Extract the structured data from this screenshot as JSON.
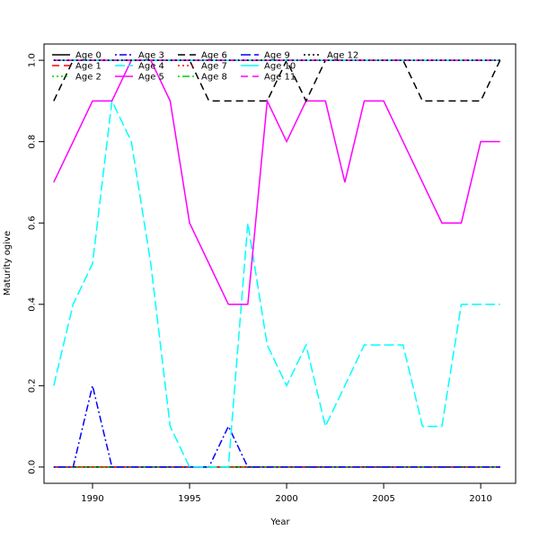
{
  "chart_data": {
    "type": "line",
    "xlabel": "Year",
    "ylabel": "Maturity ogive",
    "xlim": [
      1987.5,
      2011.8
    ],
    "ylim": [
      -0.04,
      1.04
    ],
    "x_ticks": [
      1990,
      1995,
      2000,
      2005,
      2010
    ],
    "y_ticks": [
      0.0,
      0.2,
      0.4,
      0.6,
      0.8,
      1.0
    ],
    "x_tick_labels": [
      "1990",
      "1995",
      "2000",
      "2005",
      "2010"
    ],
    "y_tick_labels": [
      "0.0",
      "0.2",
      "0.4",
      "0.6",
      "0.8",
      "1.0"
    ],
    "grid": false,
    "legend_position": "top-left",
    "x": [
      1988,
      1989,
      1990,
      1991,
      1992,
      1993,
      1994,
      1995,
      1996,
      1997,
      1998,
      1999,
      2000,
      2001,
      2002,
      2003,
      2004,
      2005,
      2006,
      2007,
      2008,
      2009,
      2010,
      2011
    ],
    "series": [
      {
        "name": "Age 0",
        "color": "#000000",
        "dash": "solid",
        "values": [
          0,
          0,
          0,
          0,
          0,
          0,
          0,
          0,
          0,
          0,
          0,
          0,
          0,
          0,
          0,
          0,
          0,
          0,
          0,
          0,
          0,
          0,
          0,
          0
        ]
      },
      {
        "name": "Age 1",
        "color": "#ff0000",
        "dash": "dashed",
        "values": [
          0,
          0,
          0,
          0,
          0,
          0,
          0,
          0,
          0,
          0,
          0,
          0,
          0,
          0,
          0,
          0,
          0,
          0,
          0,
          0,
          0,
          0,
          0,
          0
        ]
      },
      {
        "name": "Age 2",
        "color": "#00cd00",
        "dash": "dotted",
        "values": [
          0,
          0,
          0,
          0,
          0,
          0,
          0,
          0,
          0,
          0,
          0,
          0,
          0,
          0,
          0,
          0,
          0,
          0,
          0,
          0,
          0,
          0,
          0,
          0
        ]
      },
      {
        "name": "Age 3",
        "color": "#0000ff",
        "dash": "dotdash",
        "values": [
          0,
          0,
          0.2,
          0,
          0,
          0,
          0,
          0,
          0,
          0.1,
          0,
          0,
          0,
          0,
          0,
          0,
          0,
          0,
          0,
          0,
          0,
          0,
          0,
          0
        ]
      },
      {
        "name": "Age 4",
        "color": "#00ffff",
        "dash": "longdash",
        "values": [
          0.2,
          0.4,
          0.5,
          0.9,
          0.8,
          0.5,
          0.1,
          0,
          0,
          0,
          0.6,
          0.3,
          0.2,
          0.3,
          0.1,
          0.2,
          0.3,
          0.3,
          0.3,
          0.1,
          0.1,
          0.4,
          0.4,
          0.4
        ]
      },
      {
        "name": "Age 5",
        "color": "#ff00ff",
        "dash": "solid",
        "values": [
          0.7,
          0.8,
          0.9,
          0.9,
          1.0,
          1.0,
          0.9,
          0.6,
          0.5,
          0.4,
          0.4,
          0.9,
          0.8,
          0.9,
          0.9,
          0.7,
          0.9,
          0.9,
          0.8,
          0.7,
          0.6,
          0.6,
          0.8,
          0.8
        ]
      },
      {
        "name": "Age 6",
        "color": "#000000",
        "dash": "dashed",
        "values": [
          0.9,
          1.0,
          1.0,
          1.0,
          1.0,
          1.0,
          1.0,
          1.0,
          0.9,
          0.9,
          0.9,
          0.9,
          1.0,
          0.9,
          1.0,
          1.0,
          1.0,
          1.0,
          1.0,
          0.9,
          0.9,
          0.9,
          0.9,
          1.0
        ]
      },
      {
        "name": "Age 7",
        "color": "#ff0000",
        "dash": "dotted",
        "values": [
          1,
          1,
          1,
          1,
          1,
          1,
          1,
          1,
          1,
          1,
          1,
          1,
          1,
          1,
          1,
          1,
          1,
          1,
          1,
          1,
          1,
          1,
          1,
          1
        ]
      },
      {
        "name": "Age 8",
        "color": "#00cd00",
        "dash": "dotdash",
        "values": [
          1,
          1,
          1,
          1,
          1,
          1,
          1,
          1,
          1,
          1,
          1,
          1,
          1,
          1,
          1,
          1,
          1,
          1,
          1,
          1,
          1,
          1,
          1,
          1
        ]
      },
      {
        "name": "Age 9",
        "color": "#0000ff",
        "dash": "longdash",
        "values": [
          1,
          1,
          1,
          1,
          1,
          1,
          1,
          1,
          1,
          1,
          1,
          1,
          1,
          1,
          1,
          1,
          1,
          1,
          1,
          1,
          1,
          1,
          1,
          1
        ]
      },
      {
        "name": "Age 10",
        "color": "#00ffff",
        "dash": "solid",
        "values": [
          1,
          1,
          1,
          1,
          1,
          1,
          1,
          1,
          1,
          1,
          1,
          1,
          1,
          1,
          1,
          1,
          1,
          1,
          1,
          1,
          1,
          1,
          1,
          1
        ]
      },
      {
        "name": "Age 11",
        "color": "#ff00ff",
        "dash": "dashed",
        "values": [
          1,
          1,
          1,
          1,
          1,
          1,
          1,
          1,
          1,
          1,
          1,
          1,
          1,
          1,
          1,
          1,
          1,
          1,
          1,
          1,
          1,
          1,
          1,
          1
        ]
      },
      {
        "name": "Age 12",
        "color": "#000000",
        "dash": "dotted",
        "values": [
          1,
          1,
          1,
          1,
          1,
          1,
          1,
          1,
          1,
          1,
          1,
          1,
          1,
          1,
          1,
          1,
          1,
          1,
          1,
          1,
          1,
          1,
          1,
          1
        ]
      }
    ]
  }
}
